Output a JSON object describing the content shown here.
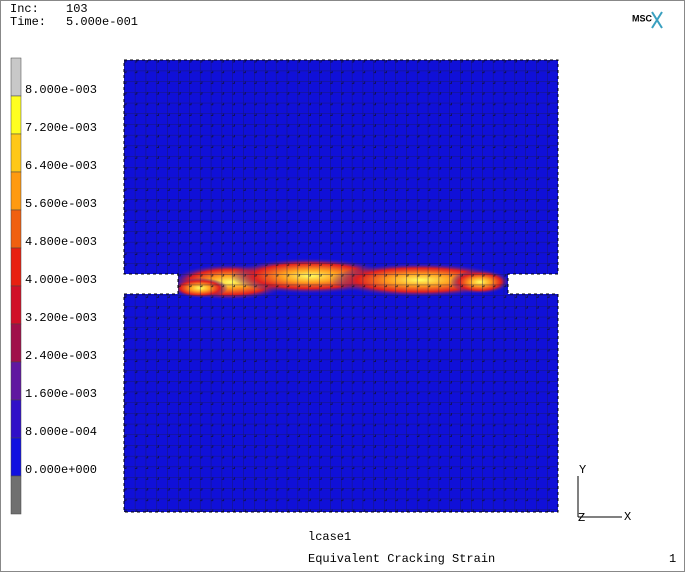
{
  "header": {
    "inc_label": "Inc:",
    "inc": "103",
    "time_label": "Time:",
    "time": "5.000e-001"
  },
  "logo": "MSC",
  "legend": {
    "labels": [
      "8.000e-003",
      "7.200e-003",
      "6.400e-003",
      "5.600e-003",
      "4.800e-003",
      "4.000e-003",
      "3.200e-003",
      "2.400e-003",
      "1.600e-003",
      "8.000e-004",
      "0.000e+000"
    ]
  },
  "load_case": "lcase1",
  "result": "Equivalent Cracking Strain",
  "page": "1",
  "axes": {
    "y": "Y",
    "z": "Z",
    "x": "X"
  }
}
